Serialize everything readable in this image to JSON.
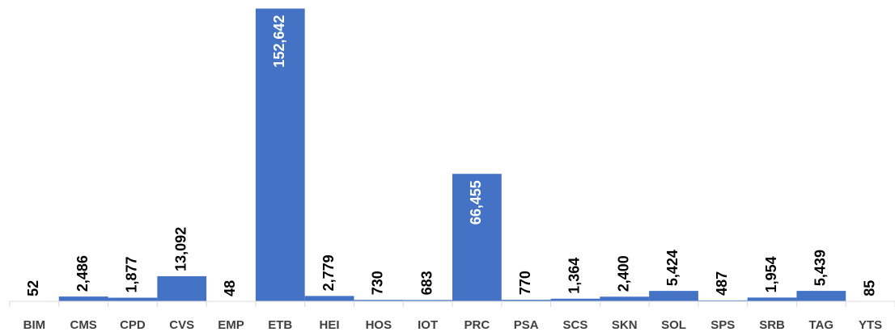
{
  "chart_data": {
    "type": "bar",
    "categories": [
      "BIM",
      "CMS",
      "CPD",
      "CVS",
      "EMP",
      "ETB",
      "HEI",
      "HOS",
      "IOT",
      "PRC",
      "PSA",
      "SCS",
      "SKN",
      "SOL",
      "SPS",
      "SRB",
      "TAG",
      "YTS"
    ],
    "values": [
      52,
      2486,
      1877,
      13092,
      48,
      152642,
      2779,
      730,
      683,
      66455,
      770,
      1364,
      2400,
      5424,
      487,
      1954,
      5439,
      85
    ],
    "value_labels": [
      "52",
      "2,486",
      "1,877",
      "13,092",
      "48",
      "152,642",
      "2,779",
      "730",
      "683",
      "66,455",
      "770",
      "1,364",
      "2,400",
      "5,424",
      "487",
      "1,954",
      "5,439",
      "85"
    ],
    "color": "#4472c4",
    "ylim": [
      0,
      155000
    ]
  }
}
